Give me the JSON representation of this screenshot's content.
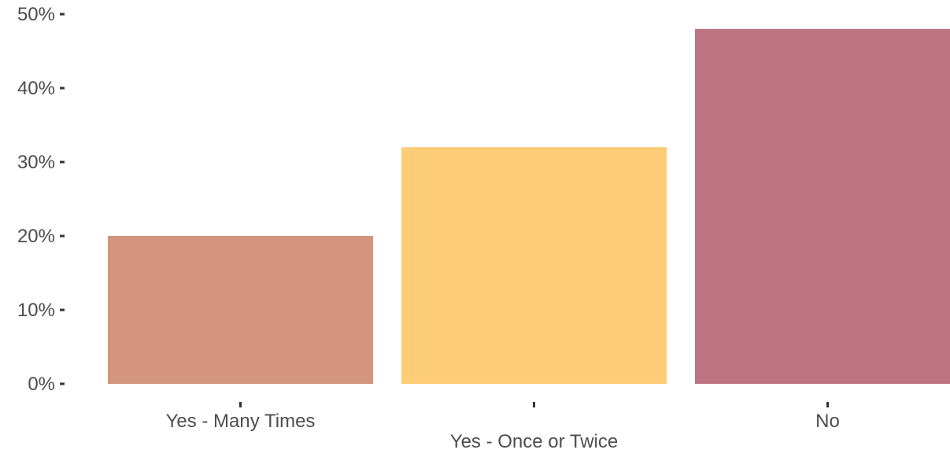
{
  "chart_data": {
    "type": "bar",
    "categories": [
      "Yes - Many Times",
      "Yes - Once or Twice",
      "No"
    ],
    "values": [
      20,
      32,
      48
    ],
    "y_tick_labels": [
      "0%",
      "10%",
      "20%",
      "30%",
      "40%",
      "50%"
    ],
    "y_ticks": [
      0,
      10,
      20,
      30,
      40,
      50
    ],
    "ylim": [
      0,
      50
    ],
    "title": "",
    "xlabel": "",
    "ylabel": "",
    "grid": false,
    "legend": "none",
    "colors": [
      "#d3967d",
      "#fdcc76",
      "#be7483"
    ],
    "tick_color": "#333333",
    "label_color": "#4d4d4d"
  }
}
